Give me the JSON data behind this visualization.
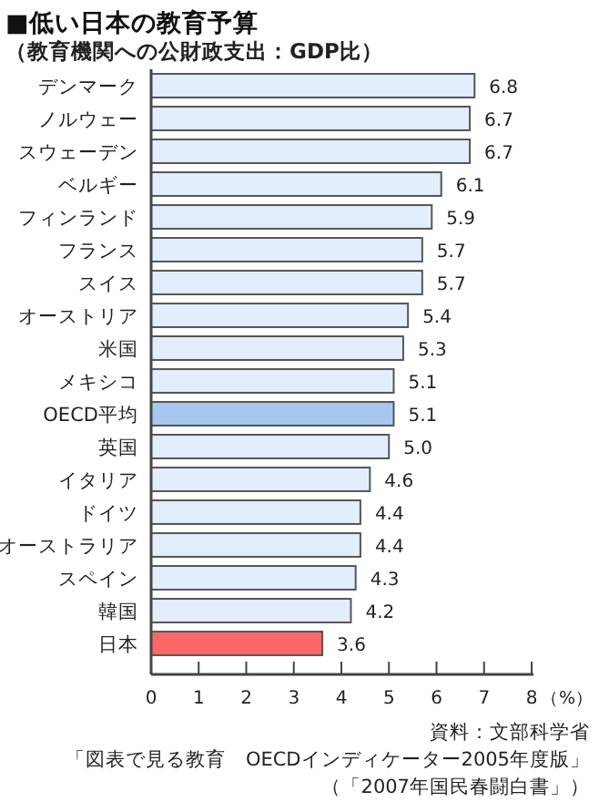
{
  "chart_data": {
    "type": "bar",
    "orientation": "horizontal",
    "title": "■低い日本の教育予算",
    "subtitle": "（教育機関への公財政支出：GDP比）",
    "xlabel": "（%）",
    "categories": [
      "デンマーク",
      "ノルウェー",
      "スウェーデン",
      "ベルギー",
      "フィンランド",
      "フランス",
      "スイス",
      "オーストリア",
      "米国",
      "メキシコ",
      "OECD平均",
      "英国",
      "イタリア",
      "ドイツ",
      "オーストラリア",
      "スペイン",
      "韓国",
      "日本"
    ],
    "values": [
      6.8,
      6.7,
      6.7,
      6.1,
      5.9,
      5.7,
      5.7,
      5.4,
      5.3,
      5.1,
      5.1,
      5.0,
      4.6,
      4.4,
      4.4,
      4.3,
      4.2,
      3.6
    ],
    "value_labels": [
      "6.8",
      "6.7",
      "6.7",
      "6.1",
      "5.9",
      "5.7",
      "5.7",
      "5.4",
      "5.3",
      "5.1",
      "5.1",
      "5.0",
      "4.6",
      "4.4",
      "4.4",
      "4.3",
      "4.2",
      "3.6"
    ],
    "colors": [
      "#e3eefc",
      "#e3eefc",
      "#e3eefc",
      "#e3eefc",
      "#e3eefc",
      "#e3eefc",
      "#e3eefc",
      "#e3eefc",
      "#e3eefc",
      "#e3eefc",
      "#a6c8f0",
      "#e3eefc",
      "#e3eefc",
      "#e3eefc",
      "#e3eefc",
      "#e3eefc",
      "#e3eefc",
      "#ff6666"
    ],
    "xlim": [
      0,
      8
    ],
    "xticks": [
      0,
      1,
      2,
      3,
      4,
      5,
      6,
      7,
      8
    ],
    "annotations": [
      "資料：文部科学省",
      "「図表で見る教育　OECDインディケーター2005年度版」",
      "（「2007年国民春闘白書」）"
    ]
  }
}
